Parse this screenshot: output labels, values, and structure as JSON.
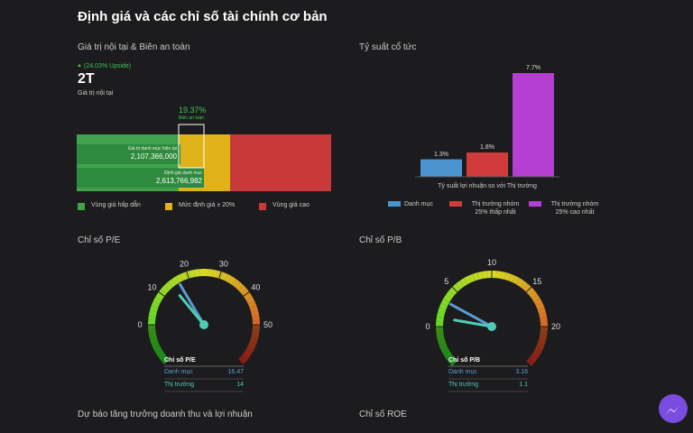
{
  "header": {
    "title": "Định giá và các chỉ số tài chính cơ bản"
  },
  "intrinsic": {
    "title": "Giá trị nội tại & Biên an toàn",
    "upside": "(24.03% Upside)",
    "value": "2T",
    "value_label": "Giá trị nội tại",
    "margin": {
      "value": "19.37%",
      "label": "Biên an toàn"
    },
    "current": {
      "label": "Giá trị danh mục hiện tại",
      "value": "2,107,366,000"
    },
    "fair": {
      "label": "Định giá danh mục",
      "value": "2,613,766,982"
    },
    "legend": [
      {
        "name": "Vùng giá hấp dẫn",
        "color": "#3fa34d"
      },
      {
        "name": "Mức định giá ± 20%",
        "color": "#e0b21a"
      },
      {
        "name": "Vùng giá cao",
        "color": "#c83a3a"
      }
    ]
  },
  "dividend": {
    "type": "bar",
    "title": "Tỷ suất cổ tức",
    "x_label": "Tỷ suất lợi nhuận so với Thị trường",
    "categories": [
      "Danh mục",
      "Thị trường nhóm 25% thấp nhất",
      "Thị trường nhóm 25% cao nhất"
    ],
    "values": [
      1.3,
      1.8,
      7.7
    ],
    "value_labels": [
      "1.3%",
      "1.8%",
      "7.7%"
    ],
    "colors": [
      "#4b94d0",
      "#d23b3b",
      "#b43fd0"
    ]
  },
  "gauges": [
    {
      "title": "Chỉ số P/E",
      "table_title": "Chỉ số P/E",
      "range": [
        0,
        50
      ],
      "ticks": [
        0,
        10,
        20,
        30,
        40,
        50
      ],
      "rows": [
        {
          "label": "Danh mục",
          "value": 16.47,
          "color": "#5b9bd5"
        },
        {
          "label": "Thị trường",
          "value": 14,
          "color": "#4ecdb4"
        }
      ]
    },
    {
      "title": "Chỉ số P/B",
      "table_title": "Chỉ số P/B",
      "range": [
        0,
        20
      ],
      "ticks": [
        0,
        5,
        10,
        15,
        20
      ],
      "rows": [
        {
          "label": "Danh mục",
          "value": 3.16,
          "color": "#5b9bd5"
        },
        {
          "label": "Thị trường",
          "value": 1.1,
          "color": "#4ecdb4"
        }
      ]
    }
  ],
  "sections": [
    "Dự báo tăng trưởng doanh thu và lợi nhuận",
    "Chỉ số ROE"
  ]
}
